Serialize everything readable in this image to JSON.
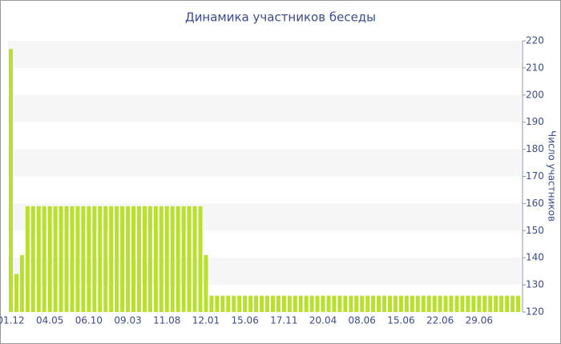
{
  "chart_data": {
    "type": "bar",
    "title": "Динамика участников беседы",
    "y_axis_label": "Число участников",
    "categories": [
      "01.12",
      null,
      null,
      null,
      null,
      null,
      null,
      "04.05",
      null,
      null,
      null,
      null,
      null,
      null,
      "06.10",
      null,
      null,
      null,
      null,
      null,
      null,
      "09.03",
      null,
      null,
      null,
      null,
      null,
      null,
      "11.08",
      null,
      null,
      null,
      null,
      null,
      null,
      "12.01",
      null,
      null,
      null,
      null,
      null,
      null,
      "15.06",
      null,
      null,
      null,
      null,
      null,
      null,
      "17.11",
      null,
      null,
      null,
      null,
      null,
      null,
      "20.04",
      null,
      null,
      null,
      null,
      null,
      null,
      "08.06",
      null,
      null,
      null,
      null,
      null,
      null,
      "15.06",
      null,
      null,
      null,
      null,
      null,
      null,
      "22.06",
      null,
      null,
      null,
      null,
      null,
      null,
      "29.06",
      null,
      null,
      null,
      null,
      null,
      null,
      null
    ],
    "values": [
      217,
      134,
      141,
      159,
      159,
      159,
      159,
      159,
      159,
      159,
      159,
      159,
      159,
      159,
      159,
      159,
      159,
      159,
      159,
      159,
      159,
      159,
      159,
      159,
      159,
      159,
      159,
      159,
      159,
      159,
      159,
      159,
      159,
      159,
      159,
      141,
      126,
      126,
      126,
      126,
      126,
      126,
      126,
      126,
      126,
      126,
      126,
      126,
      126,
      126,
      126,
      126,
      126,
      126,
      126,
      126,
      126,
      126,
      126,
      126,
      126,
      126,
      126,
      126,
      126,
      126,
      126,
      126,
      126,
      126,
      126,
      126,
      126,
      126,
      126,
      126,
      126,
      126,
      126,
      126,
      126,
      126,
      126,
      126,
      126,
      126,
      126,
      126,
      126,
      126,
      126,
      126
    ],
    "color": "#b8e02c",
    "ylim": [
      120,
      220
    ],
    "yticks": [
      120,
      130,
      140,
      150,
      160,
      170,
      180,
      190,
      200,
      210,
      220
    ],
    "y_axis_side": "right",
    "grid": "bands"
  }
}
